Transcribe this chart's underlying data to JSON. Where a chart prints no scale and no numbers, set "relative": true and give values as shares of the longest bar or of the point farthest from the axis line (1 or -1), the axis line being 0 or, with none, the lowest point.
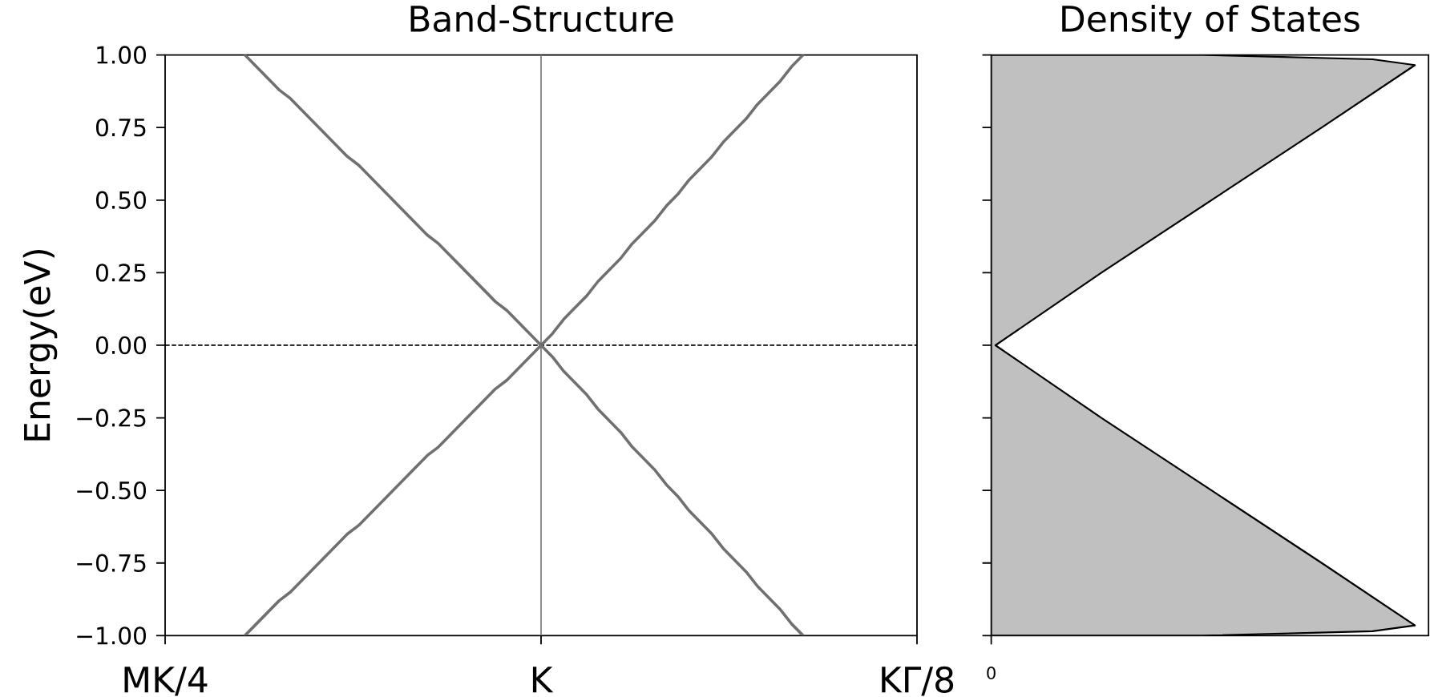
{
  "chart_data": [
    {
      "type": "line",
      "title": "Band-Structure",
      "ylabel": "Energy(eV)",
      "categories": [
        "MK/4",
        null,
        null,
        null,
        null,
        null,
        null,
        null,
        null,
        null,
        null,
        null,
        null,
        null,
        null,
        null,
        null,
        null,
        null,
        null,
        null,
        null,
        null,
        null,
        null,
        null,
        null,
        null,
        null,
        null,
        null,
        null,
        null,
        "K",
        null,
        null,
        null,
        null,
        null,
        null,
        null,
        null,
        null,
        null,
        null,
        null,
        null,
        null,
        null,
        null,
        null,
        null,
        null,
        null,
        null,
        null,
        null,
        null,
        null,
        null,
        null,
        null,
        null,
        null,
        null,
        null,
        "KΓ/8"
      ],
      "ylim": [
        -1,
        1
      ],
      "yticks": [
        {
          "value": -1,
          "label": "−1.00"
        },
        {
          "value": -0.75,
          "label": "−0.75"
        },
        {
          "value": -0.5,
          "label": "−0.50"
        },
        {
          "value": -0.25,
          "label": "−0.25"
        },
        {
          "value": 0,
          "label": "0.00"
        },
        {
          "value": 0.25,
          "label": "0.25"
        },
        {
          "value": 0.5,
          "label": "0.50"
        },
        {
          "value": 0.75,
          "label": "0.75"
        },
        {
          "value": 1,
          "label": "1.00"
        }
      ],
      "series": [
        {
          "color": "#707070",
          "values": [
            null,
            null,
            null,
            null,
            null,
            null,
            null,
            1,
            0.96,
            0.92,
            0.88,
            0.85,
            0.81,
            0.77,
            0.73,
            0.69,
            0.65,
            0.62,
            0.58,
            0.54,
            0.5,
            0.46,
            0.42,
            0.38,
            0.35,
            0.31,
            0.27,
            0.23,
            0.19,
            0.15,
            0.12,
            0.08,
            0.04,
            0,
            0.04,
            0.09,
            0.13,
            0.17,
            0.22,
            0.26,
            0.3,
            0.35,
            0.39,
            0.43,
            0.48,
            0.52,
            0.57,
            0.61,
            0.65,
            0.7,
            0.74,
            0.78,
            0.83,
            0.87,
            0.91,
            0.96,
            1,
            null,
            null,
            null,
            null,
            null,
            null,
            null,
            null,
            null,
            null
          ]
        },
        {
          "color": "#707070",
          "values": [
            null,
            null,
            null,
            null,
            null,
            null,
            null,
            -1,
            -0.96,
            -0.92,
            -0.88,
            -0.85,
            -0.81,
            -0.77,
            -0.73,
            -0.69,
            -0.65,
            -0.62,
            -0.58,
            -0.54,
            -0.5,
            -0.46,
            -0.42,
            -0.38,
            -0.35,
            -0.31,
            -0.27,
            -0.23,
            -0.19,
            -0.15,
            -0.12,
            -0.08,
            -0.04,
            0,
            -0.04,
            -0.09,
            -0.13,
            -0.17,
            -0.22,
            -0.26,
            -0.3,
            -0.35,
            -0.39,
            -0.43,
            -0.48,
            -0.52,
            -0.57,
            -0.61,
            -0.65,
            -0.7,
            -0.74,
            -0.78,
            -0.83,
            -0.87,
            -0.91,
            -0.96,
            -1,
            null,
            null,
            null,
            null,
            null,
            null,
            null,
            null,
            null,
            null
          ]
        }
      ],
      "ref_lines": [
        {
          "axis": "x",
          "value": "K",
          "color": "#808080"
        },
        {
          "axis": "y",
          "value": 0,
          "color": "#000000",
          "line_style": "dashed"
        }
      ]
    },
    {
      "type": "area",
      "title": "Density of States",
      "orientation": "horizontal",
      "relative": true,
      "ylim": [
        -1,
        1
      ],
      "yticks": [
        -1,
        -0.75,
        -0.5,
        -0.25,
        0,
        0.25,
        0.5,
        0.75,
        1
      ],
      "tick_labels": "x",
      "annotations": [
        "0"
      ],
      "series": [
        {
          "color": "#c0c0c0",
          "x": [
            -1,
            -0.985,
            -0.965,
            -0.75,
            -0.5,
            -0.25,
            -0.03,
            0,
            0.03,
            0.25,
            0.5,
            0.75,
            0.965,
            0.985,
            1
          ],
          "values": [
            0.5,
            0.9,
            1,
            0.78,
            0.52,
            0.26,
            0.04,
            0.01,
            0.04,
            0.26,
            0.52,
            0.78,
            1,
            0.9,
            0.5
          ]
        }
      ]
    }
  ]
}
